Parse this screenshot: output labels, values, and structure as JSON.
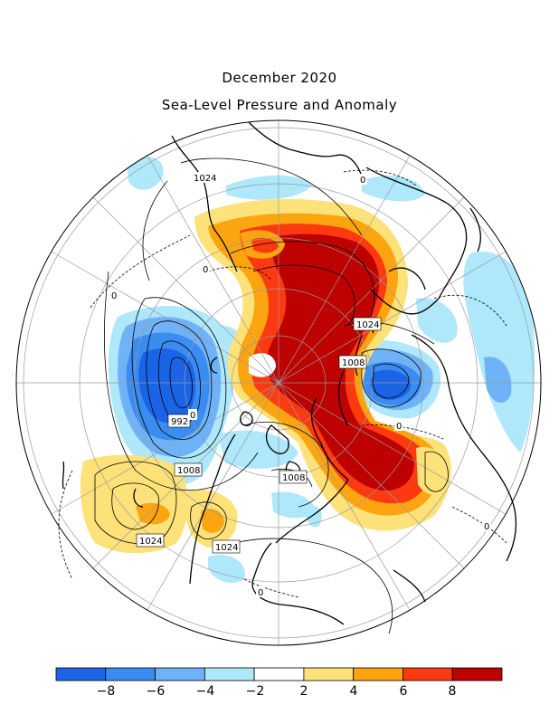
{
  "figure": {
    "title": "December 2020",
    "subtitle": "Sea-Level Pressure and Anomaly"
  },
  "contour_labels": [
    "1024",
    "0",
    "0",
    "0",
    "1024",
    "1008",
    "992",
    "1008",
    "1008",
    "1024",
    "1024",
    "0",
    "0",
    "0",
    "0"
  ],
  "colorbar": {
    "tick_labels": [
      "−8",
      "−6",
      "−4",
      "−2",
      "2",
      "4",
      "6",
      "8"
    ],
    "colors": [
      "#1b64e6",
      "#3a8cf0",
      "#6fb2f7",
      "#aee8fa",
      "#ffffff",
      "#fde27a",
      "#fca510",
      "#fb3a12",
      "#bd0000"
    ]
  },
  "anomaly_colors": {
    "neg_strong": "#1b64e6",
    "neg_mid": "#3a8cf0",
    "neg_light": "#6fb2f7",
    "neg_faint": "#aee8fa",
    "pos_faint": "#fde27a",
    "pos_light": "#fca510",
    "pos_mid": "#fb3a12",
    "pos_strong": "#bd0000"
  }
}
